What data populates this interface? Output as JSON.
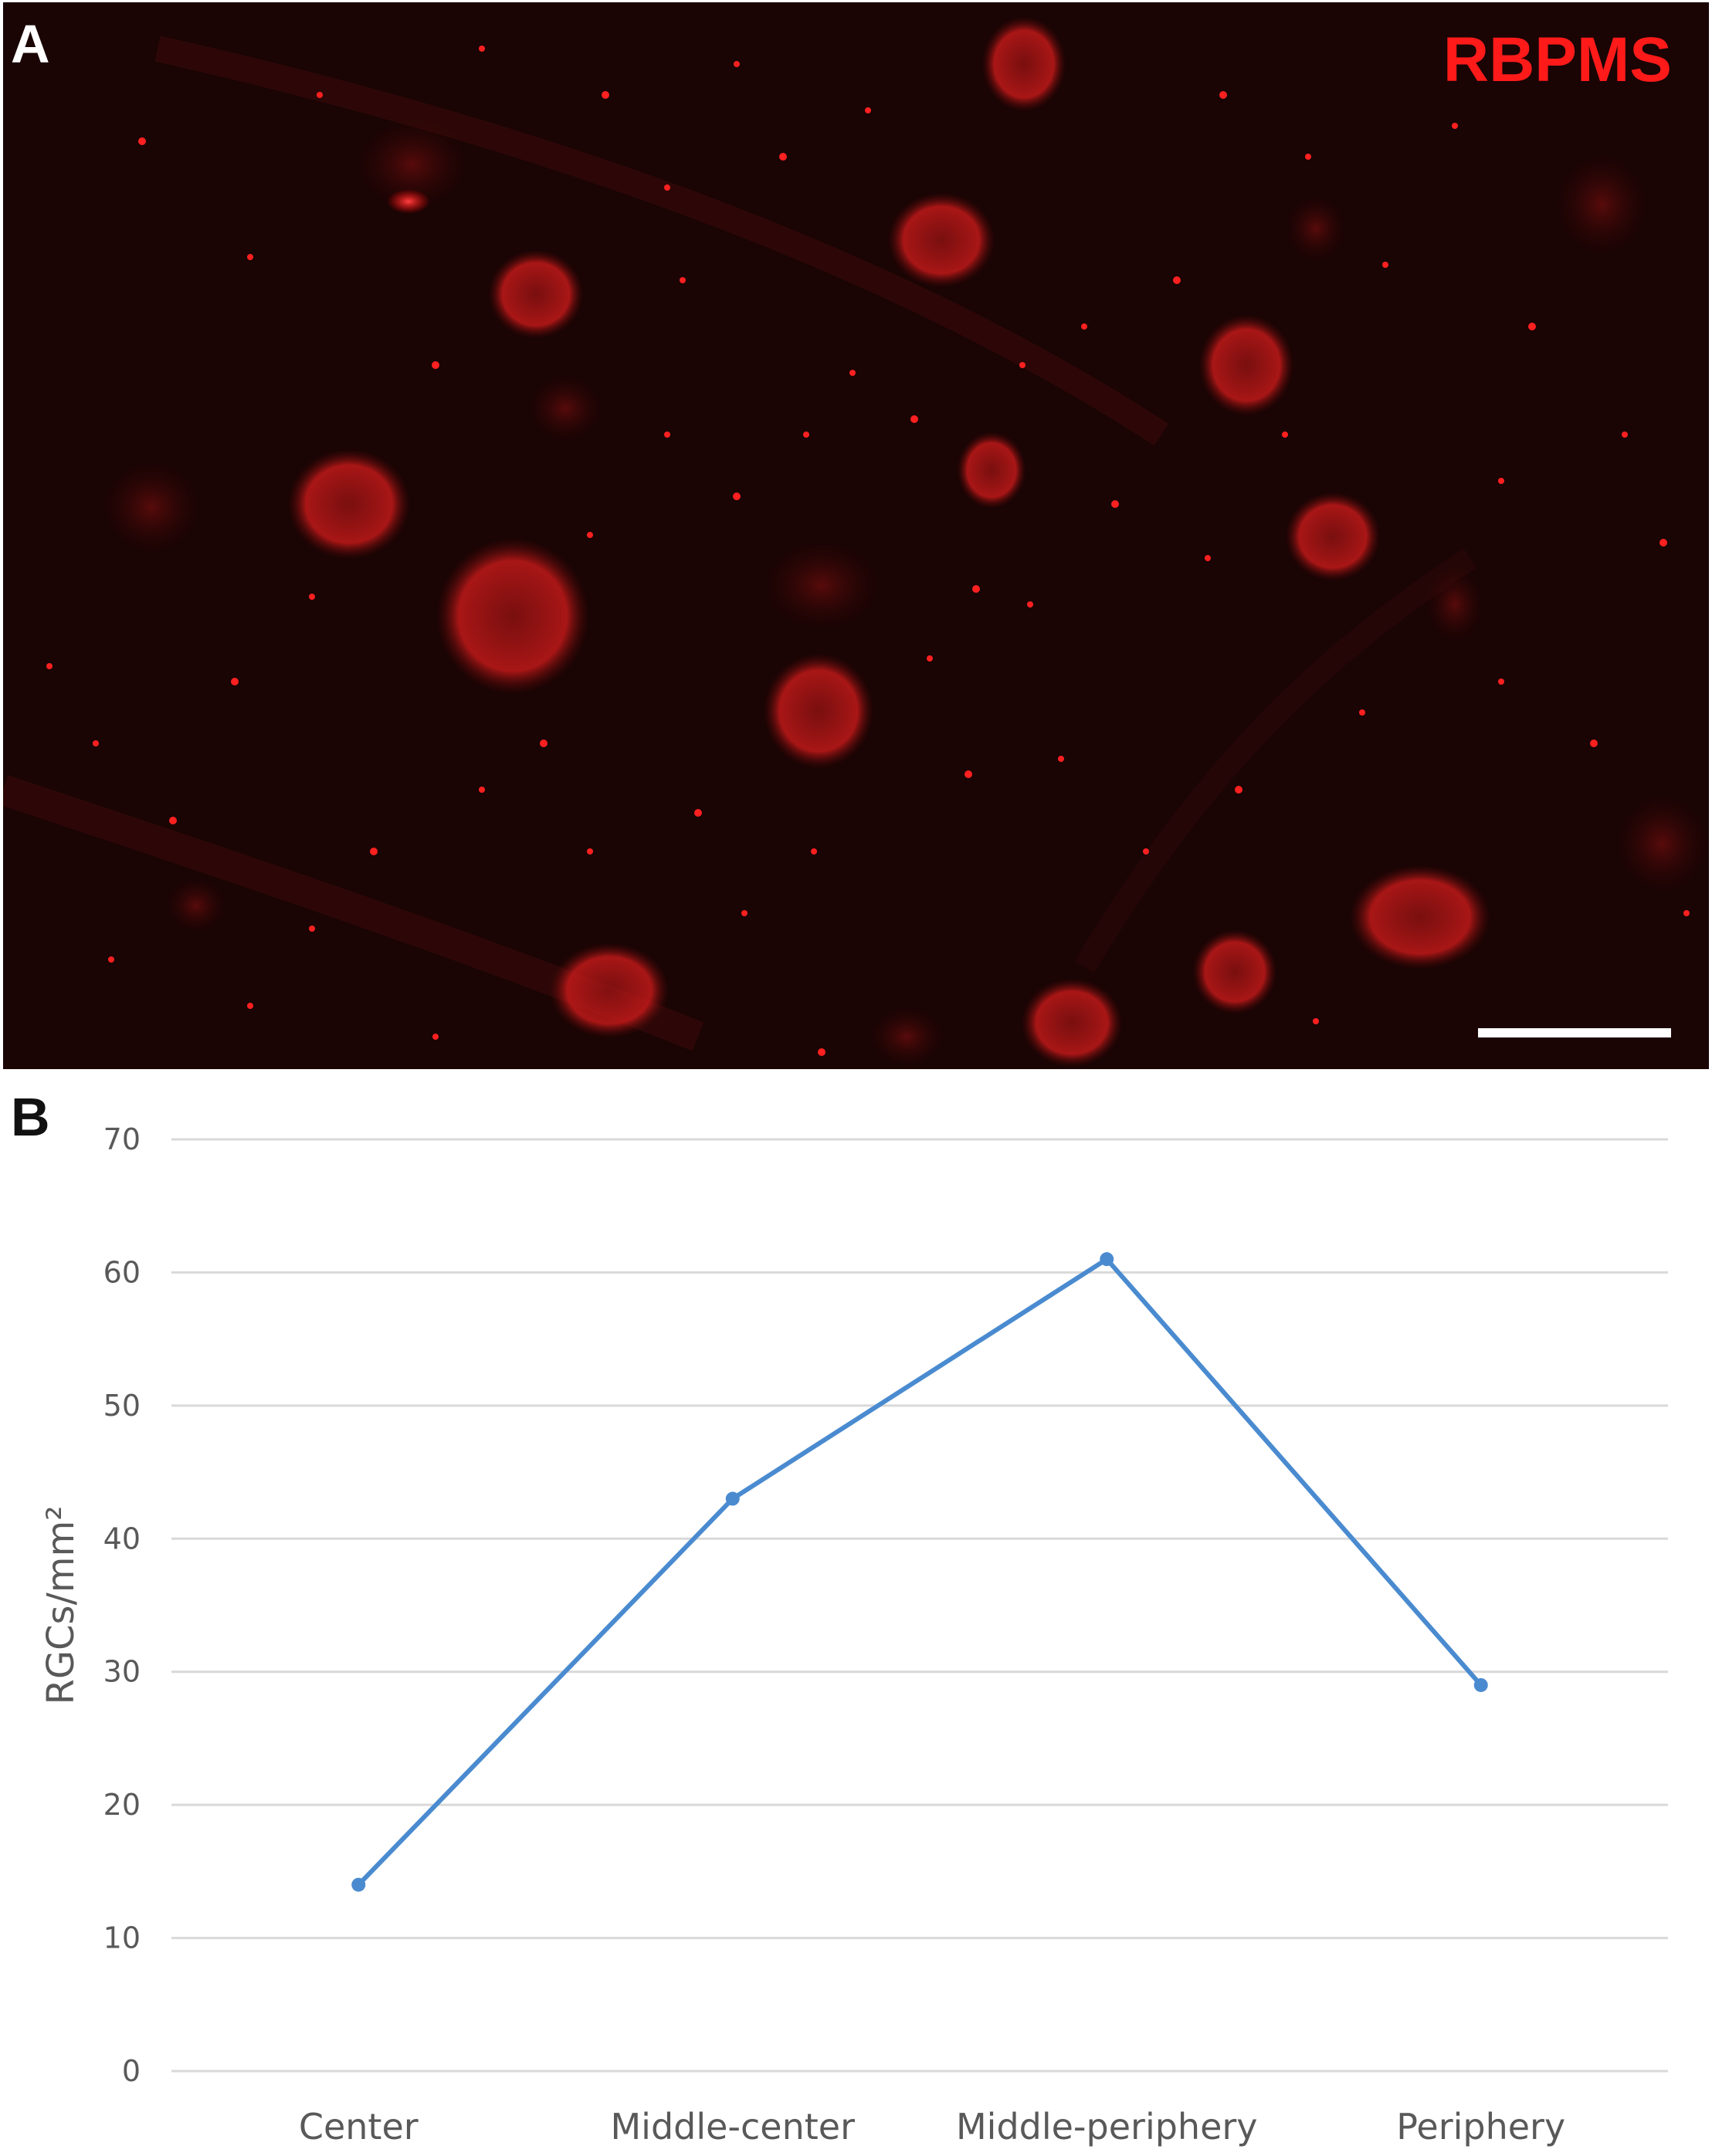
{
  "panel_a": {
    "letter": "A",
    "stain_label": "RBPMS"
  },
  "panel_b": {
    "letter": "B"
  },
  "chart_data": {
    "type": "line",
    "categories": [
      "Center",
      "Middle-center",
      "Middle-periphery",
      "Periphery"
    ],
    "series": [
      {
        "values": [
          14,
          43,
          61,
          29
        ],
        "color": "#4a8bd0"
      }
    ],
    "title": "",
    "xlabel": "",
    "ylabel": "RGCs/mm²",
    "ylim": [
      0,
      70
    ],
    "yticks": [
      0,
      10,
      20,
      30,
      40,
      50,
      60,
      70
    ],
    "grid": true,
    "grid_color": "#d9d9d9"
  }
}
